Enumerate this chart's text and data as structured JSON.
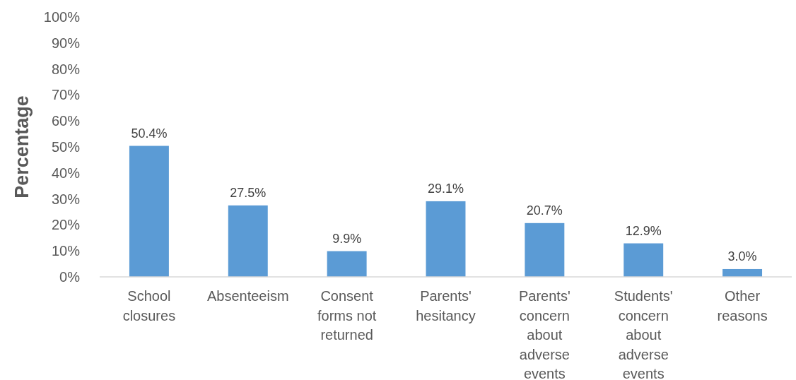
{
  "chart_data": {
    "type": "bar",
    "ylabel": "Percentage",
    "categories": [
      "School closures",
      "Absenteeism",
      "Consent forms not returned",
      "Parents' hesitancy",
      "Parents' concern about adverse events",
      "Students' concern about adverse events",
      "Other reasons"
    ],
    "values": [
      50.4,
      27.5,
      9.9,
      29.1,
      20.7,
      12.9,
      3.0
    ],
    "value_labels": [
      "50.4%",
      "27.5%",
      "9.9%",
      "29.1%",
      "20.7%",
      "12.9%",
      "3.0%"
    ],
    "color": "#5b9bd5",
    "ylim": [
      0,
      100
    ],
    "yticks": [
      {
        "value": 0,
        "label": "0%"
      },
      {
        "value": 10,
        "label": "10%"
      },
      {
        "value": 20,
        "label": "20%"
      },
      {
        "value": 30,
        "label": "30%"
      },
      {
        "value": 40,
        "label": "40%"
      },
      {
        "value": 50,
        "label": "50%"
      },
      {
        "value": 60,
        "label": "60%"
      },
      {
        "value": 70,
        "label": "70%"
      },
      {
        "value": 80,
        "label": "80%"
      },
      {
        "value": 90,
        "label": "90%"
      },
      {
        "value": 100,
        "label": "100%"
      }
    ],
    "grid": false
  }
}
